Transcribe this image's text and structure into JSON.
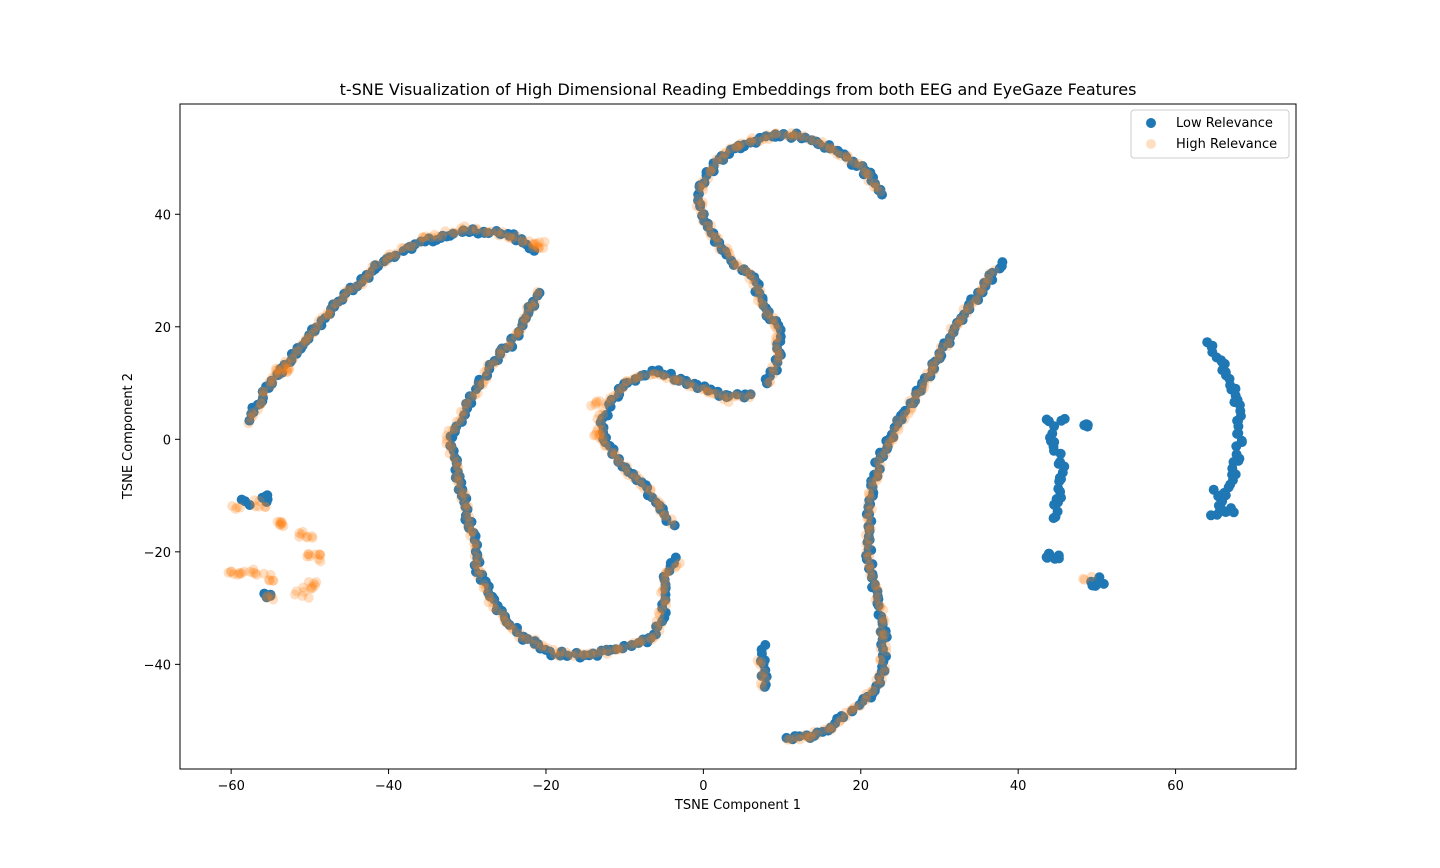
{
  "chart_data": {
    "type": "scatter",
    "title": "t-SNE Visualization of High Dimensional Reading Embeddings from both EEG and EyeGaze Features",
    "xlabel": "TSNE Component 1",
    "ylabel": "TSNE Component 2",
    "xlim": [
      -66.5,
      75.3
    ],
    "ylim": [
      -58.6,
      59.6
    ],
    "xticks": [
      -60,
      -40,
      -20,
      0,
      20,
      40,
      60
    ],
    "xtick_labels": [
      "−60",
      "−40",
      "−20",
      "0",
      "20",
      "40",
      "60"
    ],
    "yticks": [
      -40,
      -20,
      0,
      20,
      40
    ],
    "ytick_labels": [
      "−40",
      "−20",
      "0",
      "20",
      "40"
    ],
    "grid": false,
    "legend": "top-right",
    "series": [
      {
        "name": "Low Relevance",
        "color": "#1f77b4",
        "alpha": 1.0,
        "curves": [
          [
            [
              -57.8,
              3.5
            ],
            [
              -55.0,
              10.0
            ],
            [
              -51.0,
              17.0
            ],
            [
              -46.0,
              25.0
            ],
            [
              -41.0,
              31.0
            ],
            [
              -36.0,
              35.0
            ],
            [
              -30.0,
              37.0
            ],
            [
              -27.0,
              37.0
            ],
            [
              -24.0,
              36.0
            ],
            [
              -21.5,
              33.5
            ]
          ],
          [
            [
              -21.0,
              26.0
            ],
            [
              -24.0,
              18.0
            ],
            [
              -27.0,
              13.0
            ],
            [
              -30.0,
              6.0
            ],
            [
              -32.0,
              0.0
            ],
            [
              -31.0,
              -8.0
            ],
            [
              -29.5,
              -16.0
            ],
            [
              -28.5,
              -24.0
            ],
            [
              -26.0,
              -30.0
            ],
            [
              -23.0,
              -35.0
            ],
            [
              -19.0,
              -38.0
            ],
            [
              -15.0,
              -38.5
            ],
            [
              -10.0,
              -37.0
            ],
            [
              -6.0,
              -35.0
            ],
            [
              -5.0,
              -30.0
            ],
            [
              -5.0,
              -24.0
            ],
            [
              -3.5,
              -21.0
            ]
          ],
          [
            [
              -4.0,
              -15.0
            ],
            [
              -7.0,
              -9.0
            ],
            [
              -10.0,
              -5.0
            ],
            [
              -12.0,
              -1.5
            ],
            [
              -13.0,
              2.0
            ],
            [
              -12.0,
              6.0
            ],
            [
              -10.0,
              10.0
            ],
            [
              -6.0,
              12.0
            ],
            [
              -3.0,
              10.5
            ],
            [
              0.0,
              9.0
            ],
            [
              3.0,
              7.5
            ],
            [
              6.0,
              8.0
            ]
          ],
          [
            [
              8.0,
              10.0
            ],
            [
              9.5,
              14.0
            ],
            [
              9.5,
              20.0
            ],
            [
              7.5,
              24.0
            ],
            [
              6.5,
              28.0
            ],
            [
              3.5,
              32.0
            ],
            [
              1.0,
              37.0
            ],
            [
              -0.5,
              41.0
            ],
            [
              0.0,
              46.0
            ],
            [
              1.0,
              48.0
            ],
            [
              3.0,
              51.0
            ],
            [
              6.0,
              53.0
            ],
            [
              9.0,
              54.0
            ],
            [
              12.0,
              54.0
            ],
            [
              15.0,
              52.5
            ],
            [
              18.0,
              50.5
            ],
            [
              21.0,
              47.0
            ],
            [
              22.7,
              43.5
            ]
          ],
          [
            [
              10.5,
              -53.0
            ],
            [
              13.5,
              -53.0
            ],
            [
              16.5,
              -51.0
            ],
            [
              19.0,
              -48.0
            ],
            [
              21.5,
              -45.0
            ],
            [
              22.7,
              -41.0
            ],
            [
              23.0,
              -36.0
            ],
            [
              22.5,
              -30.0
            ],
            [
              21.5,
              -25.0
            ],
            [
              21.0,
              -20.0
            ],
            [
              21.0,
              -13.0
            ],
            [
              21.5,
              -8.0
            ],
            [
              22.5,
              -3.0
            ],
            [
              25.0,
              3.0
            ],
            [
              27.5,
              9.0
            ],
            [
              30.0,
              15.0
            ],
            [
              32.0,
              20.0
            ],
            [
              34.0,
              24.0
            ],
            [
              36.0,
              28.0
            ],
            [
              38.0,
              31.5
            ]
          ],
          [
            [
              44.0,
              3.5
            ],
            [
              44.5,
              0.0
            ],
            [
              45.5,
              -5.0
            ],
            [
              45.3,
              -10.0
            ],
            [
              44.5,
              -14.0
            ]
          ],
          [
            [
              64.0,
              17.5
            ],
            [
              66.0,
              13.0
            ],
            [
              67.5,
              8.0
            ],
            [
              68.3,
              3.0
            ],
            [
              68.0,
              -3.0
            ],
            [
              67.0,
              -8.0
            ],
            [
              66.0,
              -11.0
            ],
            [
              65.5,
              -12.5
            ],
            [
              64.5,
              -13.5
            ]
          ],
          [
            [
              7.6,
              -37.0
            ],
            [
              7.6,
              -41.0
            ],
            [
              7.8,
              -44.0
            ]
          ]
        ],
        "clusters": [
          {
            "x": 44.3,
            "y": -21.0,
            "n": 8
          },
          {
            "x": 48.5,
            "y": 2.8,
            "n": 4
          },
          {
            "x": 50.0,
            "y": -25.5,
            "n": 8
          },
          {
            "x": 51.0,
            "y": -25.0,
            "n": 2
          },
          {
            "x": 65.0,
            "y": -9.5,
            "n": 4
          },
          {
            "x": 66.5,
            "y": -12.5,
            "n": 6
          },
          {
            "x": 45.5,
            "y": 4.0,
            "n": 2
          },
          {
            "x": -56.0,
            "y": -10.5,
            "n": 6
          },
          {
            "x": -58.0,
            "y": -11.0,
            "n": 3
          },
          {
            "x": -55.5,
            "y": -28.0,
            "n": 5
          }
        ]
      },
      {
        "name": "High Relevance",
        "color": "#ff7f0e",
        "alpha": 0.25,
        "curves": [
          [
            [
              -58.0,
              3.0
            ],
            [
              -55.0,
              10.0
            ],
            [
              -51.0,
              17.0
            ],
            [
              -46.0,
              25.0
            ],
            [
              -41.0,
              31.5
            ],
            [
              -36.0,
              35.5
            ],
            [
              -30.0,
              37.5
            ],
            [
              -27.0,
              37.0
            ],
            [
              -24.0,
              36.0
            ],
            [
              -21.0,
              34.0
            ]
          ],
          [
            [
              -21.0,
              26.0
            ],
            [
              -24.0,
              18.0
            ],
            [
              -27.0,
              13.0
            ],
            [
              -30.0,
              6.0
            ],
            [
              -32.5,
              0.0
            ],
            [
              -31.0,
              -8.0
            ],
            [
              -29.5,
              -16.0
            ],
            [
              -28.5,
              -24.0
            ],
            [
              -26.5,
              -30.0
            ],
            [
              -23.0,
              -35.0
            ],
            [
              -19.0,
              -38.0
            ],
            [
              -15.0,
              -38.5
            ],
            [
              -10.0,
              -37.0
            ],
            [
              -6.0,
              -35.0
            ],
            [
              -5.0,
              -29.0
            ],
            [
              -5.0,
              -24.0
            ],
            [
              -3.0,
              -22.0
            ]
          ],
          [
            [
              -4.0,
              -15.0
            ],
            [
              -7.0,
              -9.0
            ],
            [
              -10.0,
              -5.0
            ],
            [
              -12.0,
              -1.5
            ],
            [
              -13.5,
              2.0
            ],
            [
              -12.5,
              6.0
            ],
            [
              -10.0,
              10.0
            ],
            [
              -6.0,
              12.0
            ],
            [
              -3.0,
              10.5
            ],
            [
              0.0,
              9.0
            ],
            [
              3.0,
              7.0
            ],
            [
              6.0,
              8.0
            ]
          ],
          [
            [
              8.0,
              10.0
            ],
            [
              9.5,
              14.0
            ],
            [
              9.5,
              20.0
            ],
            [
              7.5,
              24.0
            ],
            [
              6.5,
              28.0
            ],
            [
              3.5,
              32.0
            ],
            [
              1.0,
              37.0
            ],
            [
              -0.5,
              41.0
            ],
            [
              0.0,
              46.0
            ],
            [
              1.0,
              48.0
            ],
            [
              3.0,
              51.0
            ],
            [
              6.0,
              53.0
            ],
            [
              9.0,
              54.0
            ],
            [
              12.0,
              54.0
            ],
            [
              15.0,
              52.5
            ],
            [
              18.0,
              50.5
            ],
            [
              21.0,
              47.0
            ],
            [
              22.5,
              44.0
            ]
          ],
          [
            [
              10.5,
              -53.0
            ],
            [
              13.5,
              -53.0
            ],
            [
              16.5,
              -51.0
            ],
            [
              19.0,
              -48.0
            ],
            [
              21.5,
              -45.0
            ],
            [
              22.7,
              -41.0
            ],
            [
              23.0,
              -36.0
            ],
            [
              22.5,
              -30.0
            ],
            [
              21.5,
              -25.0
            ],
            [
              21.0,
              -20.0
            ],
            [
              21.0,
              -13.0
            ],
            [
              21.5,
              -8.0
            ],
            [
              22.5,
              -3.0
            ],
            [
              25.0,
              3.0
            ],
            [
              27.5,
              9.0
            ],
            [
              30.0,
              15.0
            ],
            [
              32.0,
              20.0
            ],
            [
              34.0,
              24.0
            ],
            [
              36.0,
              28.0
            ],
            [
              37.0,
              30.0
            ]
          ],
          [
            [
              7.0,
              -39.0
            ],
            [
              7.5,
              -42.0
            ],
            [
              7.5,
              -44.0
            ]
          ]
        ],
        "clusters": [
          {
            "x": -53.5,
            "y": 12.0,
            "n": 10
          },
          {
            "x": -21.0,
            "y": 34.5,
            "n": 8
          },
          {
            "x": -13.5,
            "y": 6.5,
            "n": 5
          },
          {
            "x": -13.5,
            "y": 1.0,
            "n": 5
          },
          {
            "x": 48.5,
            "y": -25.0,
            "n": 3
          },
          {
            "x": -59.5,
            "y": -24.0,
            "n": 8
          },
          {
            "x": -57.5,
            "y": -23.5,
            "n": 6
          },
          {
            "x": -55.5,
            "y": -24.5,
            "n": 6
          },
          {
            "x": -53.5,
            "y": -15.0,
            "n": 8
          },
          {
            "x": -50.5,
            "y": -17.0,
            "n": 8
          },
          {
            "x": -49.5,
            "y": -21.0,
            "n": 10
          },
          {
            "x": -50.0,
            "y": -26.0,
            "n": 8
          },
          {
            "x": -51.0,
            "y": -27.5,
            "n": 5
          },
          {
            "x": -56.5,
            "y": -11.5,
            "n": 6
          },
          {
            "x": -59.5,
            "y": -12.5,
            "n": 4
          },
          {
            "x": -55.0,
            "y": -28.5,
            "n": 4
          }
        ]
      }
    ]
  }
}
